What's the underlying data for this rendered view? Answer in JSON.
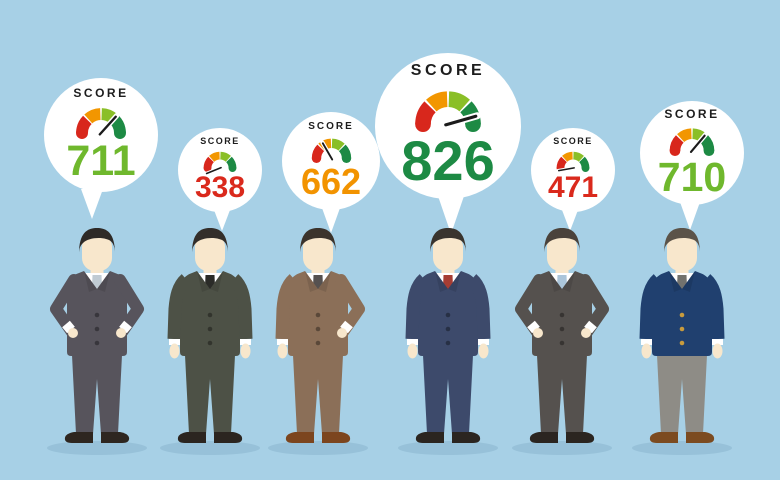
{
  "background": "#a7d0e6",
  "gauge_colors": {
    "red": "#d8271c",
    "orange": "#f29600",
    "light_green": "#8abf27",
    "dark_green": "#1d8a44"
  },
  "people": [
    {
      "score_label": "SCORE",
      "score": "711",
      "score_color": "#6fb82d",
      "needle_angle": 42,
      "figure": {
        "pose": "akimbo",
        "suit": "#57545c",
        "pants": "#57545c",
        "tie": "#c0cbd3",
        "shirt": "#ffffff",
        "skin": "#f8e7cc",
        "hair": "#2e2a27",
        "shoes": "#2e2620",
        "buttons": "rgba(0,0,0,0.35)"
      }
    },
    {
      "score_label": "SCORE",
      "score": "338",
      "score_color": "#da291c",
      "needle_angle": -112,
      "figure": {
        "pose": "down",
        "suit": "#4d5146",
        "pants": "#4d5146",
        "tie": "#2b2b28",
        "shirt": "#ffffff",
        "skin": "#f8e7cc",
        "hair": "#332e2a",
        "shoes": "#2b2520",
        "buttons": "rgba(0,0,0,0.35)"
      }
    },
    {
      "score_label": "SCORE",
      "score": "662",
      "score_color": "#f29300",
      "needle_angle": -30,
      "figure": {
        "pose": "right-akimbo",
        "suit": "#8b6f58",
        "pants": "#8b6f58",
        "tie": "#555150",
        "shirt": "#ffffff",
        "skin": "#f8e7cc",
        "hair": "#3b332c",
        "shoes": "#7c451e",
        "buttons": "rgba(0,0,0,0.35)"
      }
    },
    {
      "score_label": "SCORE",
      "score": "826",
      "score_color": "#1d8a44",
      "needle_angle": 74,
      "figure": {
        "pose": "down",
        "suit": "#3d4a6b",
        "pants": "#3d4a6b",
        "tie": "#a63d33",
        "shirt": "#ffffff",
        "skin": "#f8e7cc",
        "hair": "#39342e",
        "shoes": "#2b2520",
        "buttons": "rgba(0,0,0,0.35)"
      }
    },
    {
      "score_label": "SCORE",
      "score": "471",
      "score_color": "#da291c",
      "needle_angle": -100,
      "figure": {
        "pose": "akimbo",
        "suit": "#55514e",
        "pants": "#55514e",
        "tie": "#abc5da",
        "shirt": "#ffffff",
        "skin": "#f8e7cc",
        "hair": "#4a423b",
        "shoes": "#2b2520",
        "buttons": "rgba(0,0,0,0.35)"
      }
    },
    {
      "score_label": "SCORE",
      "score": "710",
      "score_color": "#6fb82d",
      "needle_angle": 40,
      "figure": {
        "pose": "down",
        "suit": "#20406f",
        "pants": "#8e8c86",
        "tie": "#72726e",
        "shirt": "#ffffff",
        "skin": "#f8e7cc",
        "hair": "#5b5349",
        "shoes": "#7c4b20",
        "buttons": "#c89b3d"
      }
    }
  ]
}
